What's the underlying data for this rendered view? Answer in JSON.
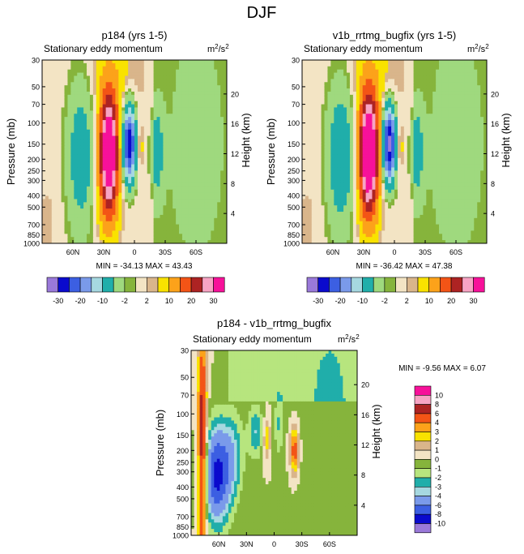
{
  "page_title": "DJF",
  "chart_data": [
    {
      "type": "contour",
      "title": "p184 (yrs 1-5)",
      "subtitle": "Stationary eddy momentum",
      "units": "m²/s²",
      "units_base": "m",
      "units_exp1": "2",
      "units_mid": "/s",
      "units_exp2": "2",
      "ylabel": "Pressure (mb)",
      "ylabel_right": "Height (km)",
      "x_ticks": [
        "60N",
        "30N",
        "0",
        "30S",
        "60S"
      ],
      "x_tick_lat": [
        60,
        30,
        0,
        -30,
        -60
      ],
      "xlim": [
        90,
        -90
      ],
      "y_ticks": [
        30,
        50,
        70,
        100,
        150,
        200,
        250,
        300,
        400,
        500,
        700,
        850,
        1000
      ],
      "y_right_ticks": [
        4,
        8,
        12,
        16,
        20
      ],
      "min_label": "MIN = -34.13",
      "max_label": "MAX =  43.43",
      "min": -34.13,
      "max": 43.43,
      "contour_levels": [
        -30,
        -25,
        -20,
        -15,
        -10,
        -5,
        -2,
        -1,
        1,
        2,
        5,
        10,
        15,
        20,
        25,
        30
      ]
    },
    {
      "type": "contour",
      "title": "v1b_rrtmg_bugfix (yrs 1-5)",
      "subtitle": "Stationary eddy momentum",
      "units": "m²/s²",
      "units_base": "m",
      "units_exp1": "2",
      "units_mid": "/s",
      "units_exp2": "2",
      "ylabel": "Pressure (mb)",
      "ylabel_right": "Height (km)",
      "x_ticks": [
        "60N",
        "30N",
        "0",
        "30S",
        "60S"
      ],
      "x_tick_lat": [
        60,
        30,
        0,
        -30,
        -60
      ],
      "xlim": [
        90,
        -90
      ],
      "y_ticks": [
        30,
        50,
        70,
        100,
        150,
        200,
        250,
        300,
        400,
        500,
        700,
        850,
        1000
      ],
      "y_right_ticks": [
        4,
        8,
        12,
        16,
        20
      ],
      "min_label": "MIN = -36.42",
      "max_label": "MAX =  47.38",
      "min": -36.42,
      "max": 47.38,
      "contour_levels": [
        -30,
        -25,
        -20,
        -15,
        -10,
        -5,
        -2,
        -1,
        1,
        2,
        5,
        10,
        15,
        20,
        25,
        30
      ]
    },
    {
      "type": "contour",
      "title": "p184 - v1b_rrtmg_bugfix",
      "subtitle": "Stationary eddy momentum",
      "units": "m²/s²",
      "units_base": "m",
      "units_exp1": "2",
      "units_mid": "/s",
      "units_exp2": "2",
      "ylabel": "Pressure (mb)",
      "ylabel_right": "Height (km)",
      "x_ticks": [
        "60N",
        "30N",
        "0",
        "30S",
        "60S"
      ],
      "x_tick_lat": [
        60,
        30,
        0,
        -30,
        -60
      ],
      "xlim": [
        90,
        -90
      ],
      "y_ticks": [
        30,
        50,
        70,
        100,
        150,
        200,
        250,
        300,
        400,
        500,
        700,
        850,
        1000
      ],
      "y_right_ticks": [
        4,
        8,
        12,
        16,
        20
      ],
      "min_label": "MIN =  -9.56",
      "max_label": "MAX =   6.07",
      "min": -9.56,
      "max": 6.07,
      "contour_levels": [
        -10,
        -8,
        -6,
        -4,
        -3,
        -2,
        -1,
        0,
        1,
        2,
        3,
        4,
        6,
        8,
        10
      ]
    }
  ],
  "colorbar_top": {
    "colors": [
      "#9a79d9",
      "#0a0acd",
      "#3c5fe2",
      "#7a9aea",
      "#a6d8e0",
      "#20aeaa",
      "#9fd97e",
      "#86b43c",
      "#f3e4c4",
      "#d9b58b",
      "#f9e200",
      "#fca21a",
      "#f35416",
      "#ad2323",
      "#f7a4c4",
      "#f7119a"
    ],
    "labels": [
      "-30",
      "-20",
      "-10",
      "-2",
      "2",
      "10",
      "20",
      "30"
    ]
  },
  "colorbar_diff": {
    "colors": [
      "#9a79d9",
      "#0a0acd",
      "#3c5fe2",
      "#7a9aea",
      "#a6d8e0",
      "#20aeaa",
      "#b7e57e",
      "#86b43c",
      "#f3e4c4",
      "#d9b58b",
      "#f9e200",
      "#fca21a",
      "#f35416",
      "#ad2323",
      "#f7a4c4",
      "#f7119a"
    ],
    "labels": [
      "-10",
      "-8",
      "-6",
      "-4",
      "-3",
      "-2",
      "-1",
      "0",
      "1",
      "2",
      "3",
      "4",
      "6",
      "8",
      "10"
    ]
  }
}
